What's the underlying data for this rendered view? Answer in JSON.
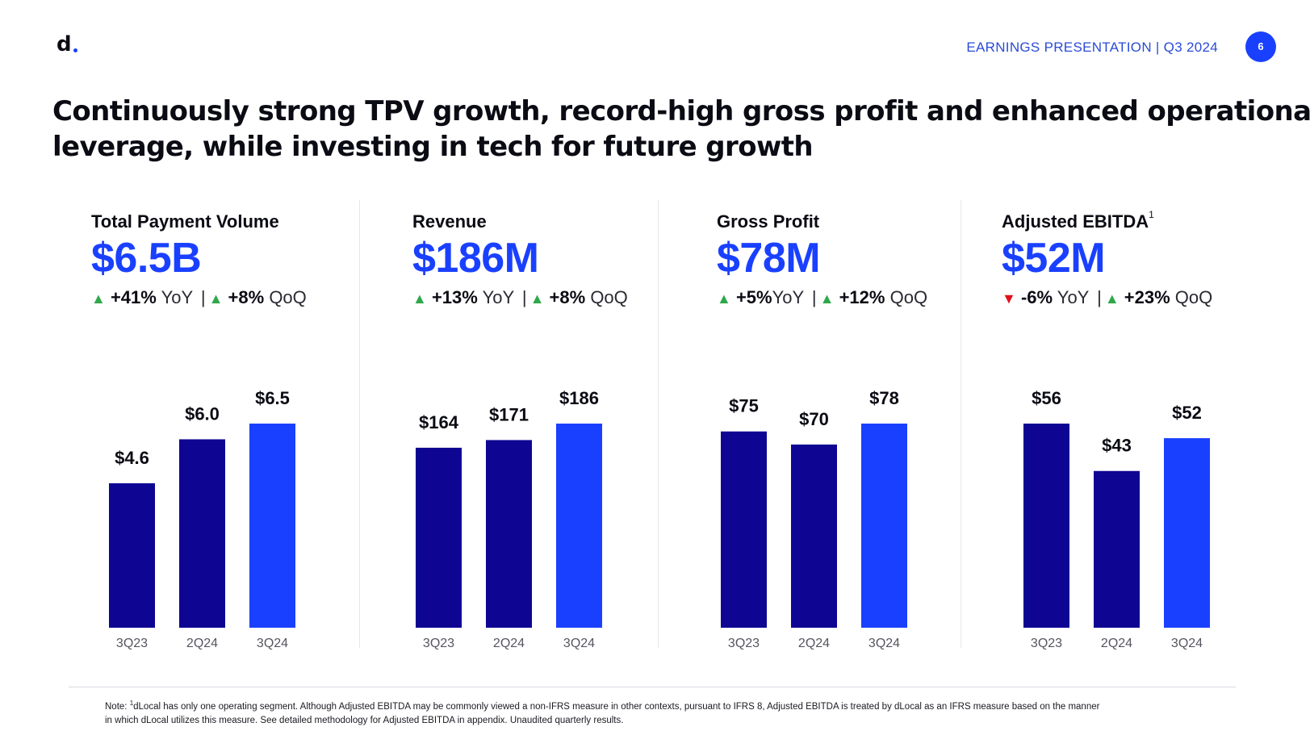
{
  "header": {
    "logo": "d",
    "presentation_label": "EARNINGS PRESENTATION | Q3 2024",
    "page_number": "6"
  },
  "title": {
    "line1": "Continuously strong TPV growth, record-high gross profit and enhanced operational",
    "line2": "leverage, while investing in tech for future growth"
  },
  "colors": {
    "accent": "#1a40ff",
    "bar_prior": "#0f0593",
    "bar_current": "#1a40ff",
    "up": "#2ea84a",
    "down": "#e0101c"
  },
  "panels": [
    {
      "name": "Total Payment Volume",
      "superscript": "",
      "value": "$6.5B",
      "yoy_dir": "▲",
      "yoy_class": "tri-up",
      "yoy": "+41%",
      "yoy_label": "YoY",
      "qoq_dir": "▲",
      "qoq_class": "tri-up",
      "qoq": "+8%",
      "qoq_label": "QoQ"
    },
    {
      "name": "Revenue",
      "superscript": "",
      "value": "$186M",
      "yoy_dir": "▲",
      "yoy_class": "tri-up",
      "yoy": "+13%",
      "yoy_label": "YoY",
      "qoq_dir": "▲",
      "qoq_class": "tri-up",
      "qoq": "+8%",
      "qoq_label": "QoQ"
    },
    {
      "name": "Gross Profit",
      "superscript": "",
      "value": "$78M",
      "yoy_dir": "▲",
      "yoy_class": "tri-up",
      "yoy": "+5%",
      "yoy_label": "YoY",
      "qoq_dir": "▲",
      "qoq_class": "tri-up",
      "qoq": "+12%",
      "qoq_label": "QoQ"
    },
    {
      "name": "Adjusted EBITDA",
      "superscript": "1",
      "value": "$52M",
      "yoy_dir": "▼",
      "yoy_class": "tri-down",
      "yoy": "-6%",
      "yoy_label": "YoY",
      "qoq_dir": "▲",
      "qoq_class": "tri-up",
      "qoq": "+23%",
      "qoq_label": "QoQ"
    }
  ],
  "chart_data": [
    {
      "type": "bar",
      "title": "Total Payment Volume",
      "categories": [
        "3Q23",
        "2Q24",
        "3Q24"
      ],
      "values": [
        4.6,
        6.0,
        6.5
      ],
      "labels": [
        "$4.6",
        "$6.0",
        "$6.5"
      ],
      "unit": "$B",
      "ylim": [
        0,
        6.5
      ]
    },
    {
      "type": "bar",
      "title": "Revenue",
      "categories": [
        "3Q23",
        "2Q24",
        "3Q24"
      ],
      "values": [
        164,
        171,
        186
      ],
      "labels": [
        "$164",
        "$171",
        "$186"
      ],
      "unit": "$M",
      "ylim": [
        0,
        186
      ]
    },
    {
      "type": "bar",
      "title": "Gross Profit",
      "categories": [
        "3Q23",
        "2Q24",
        "3Q24"
      ],
      "values": [
        75,
        70,
        78
      ],
      "labels": [
        "$75",
        "$70",
        "$78"
      ],
      "unit": "$M",
      "ylim": [
        0,
        78
      ]
    },
    {
      "type": "bar",
      "title": "Adjusted EBITDA",
      "categories": [
        "3Q23",
        "2Q24",
        "3Q24"
      ],
      "values": [
        56,
        43,
        52
      ],
      "labels": [
        "$56",
        "$43",
        "$52"
      ],
      "unit": "$M",
      "ylim": [
        0,
        56
      ]
    }
  ],
  "footnote": {
    "line1_prefix": "Note: ",
    "marker": "1",
    "line1": "dLocal has only one operating segment. Although Adjusted EBITDA may be commonly viewed a non-IFRS measure in other contexts, pursuant to IFRS 8, Adjusted EBITDA is treated by dLocal as an IFRS measure based on the manner",
    "line2": "in which dLocal utilizes this measure. See detailed methodology for Adjusted EBITDA in appendix. Unaudited quarterly results."
  }
}
